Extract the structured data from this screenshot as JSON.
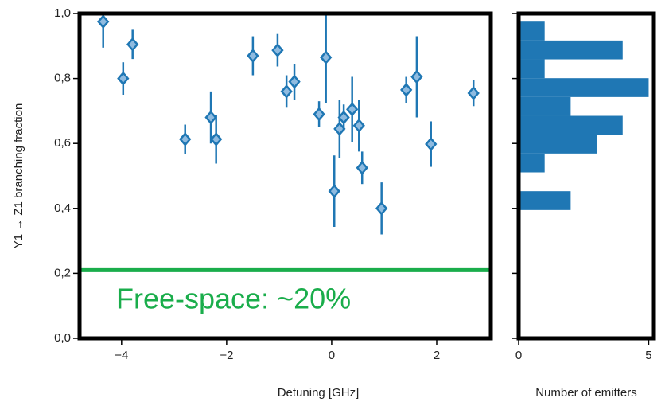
{
  "chart_data": [
    {
      "type": "scatter",
      "xlabel": "Detuning [GHz]",
      "ylabel": "Y1 → Z1 branching fraction",
      "x": [
        -4.35,
        -3.97,
        -3.79,
        -2.79,
        -2.3,
        -2.2,
        -1.5,
        -1.03,
        -0.86,
        -0.71,
        -0.24,
        -0.11,
        0.05,
        0.15,
        0.23,
        0.39,
        0.52,
        0.58,
        0.95,
        1.42,
        1.62,
        1.89,
        2.7
      ],
      "values": [
        0.975,
        0.8,
        0.905,
        0.613,
        0.68,
        0.613,
        0.87,
        0.887,
        0.76,
        0.79,
        0.69,
        0.865,
        0.453,
        0.645,
        0.68,
        0.705,
        0.655,
        0.525,
        0.4,
        0.765,
        0.805,
        0.598,
        0.755
      ],
      "errors": [
        0.08,
        0.05,
        0.045,
        0.045,
        0.08,
        0.075,
        0.06,
        0.05,
        0.05,
        0.055,
        0.04,
        0.14,
        0.11,
        0.09,
        0.04,
        0.1,
        0.08,
        0.05,
        0.08,
        0.04,
        0.125,
        0.07,
        0.04
      ],
      "color": "#1f77b4",
      "marker_fill": "#8fbbe0",
      "xlim": [
        -4.8,
        3.03
      ],
      "xticks": [
        {
          "value": -4,
          "label": "−4"
        },
        {
          "value": -2,
          "label": "−2"
        },
        0,
        2
      ],
      "ylim": [
        0,
        1
      ],
      "yticks": [
        {
          "value": 0,
          "label": "0,0"
        },
        {
          "value": 0.2,
          "label": "0,2"
        },
        {
          "value": 0.4,
          "label": "0,4"
        },
        {
          "value": 0.6,
          "label": "0,6"
        },
        {
          "value": 0.8,
          "label": "0,8"
        },
        {
          "value": 1,
          "label": "1,0"
        }
      ],
      "hline": 0.21,
      "hline_color": "#1aad4b",
      "annotation": "Free-space: ~20%"
    },
    {
      "type": "histogram",
      "orientation": "horizontal",
      "xlabel": "Number of emitters",
      "bins": [
        0.395,
        0.453,
        0.511,
        0.569,
        0.627,
        0.685,
        0.743,
        0.801,
        0.859,
        0.917,
        0.975
      ],
      "values": [
        2,
        0,
        1,
        3,
        4,
        2,
        5,
        1,
        4,
        1
      ],
      "color": "#1f77b4",
      "xlim": [
        0,
        5.2
      ],
      "xticks": [
        0,
        5
      ],
      "ylim": [
        0,
        1
      ],
      "yticks": [
        0,
        0.2,
        0.4,
        0.6,
        0.8,
        1
      ]
    }
  ]
}
